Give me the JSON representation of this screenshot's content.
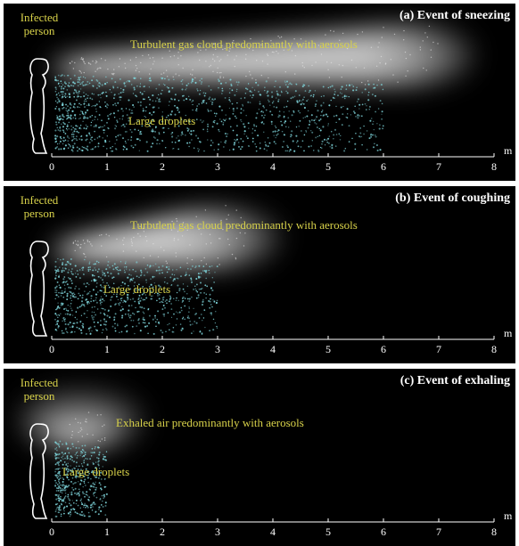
{
  "panels": [
    {
      "title": "(a) Event of sneezing",
      "person_label": [
        "Infected",
        "person"
      ],
      "cloud_label": "Turbulent gas cloud predominantly with aerosols",
      "droplet_label": "Large droplets",
      "cloud_extent_m": 7,
      "droplet_extent_m": 6
    },
    {
      "title": "(b) Event of coughing",
      "person_label": [
        "Infected",
        "person"
      ],
      "cloud_label": "Turbulent gas cloud predominantly with aerosols",
      "droplet_label": "Large droplets",
      "cloud_extent_m": 3.5,
      "droplet_extent_m": 3
    },
    {
      "title": "(c) Event of exhaling",
      "person_label": [
        "Infected",
        "person"
      ],
      "cloud_label": "Exhaled air predominantly with aerosols",
      "droplet_label": "Large droplets",
      "cloud_extent_m": 1,
      "droplet_extent_m": 1
    }
  ],
  "axis": {
    "ticks": [
      "0",
      "1",
      "2",
      "3",
      "4",
      "5",
      "6",
      "7",
      "8"
    ],
    "unit": "m"
  },
  "colors": {
    "background": "#000000",
    "label": "#d8d24a",
    "droplet": "#7fd6dc",
    "cloud": "#d9d9d9",
    "title": "#ffffff"
  }
}
